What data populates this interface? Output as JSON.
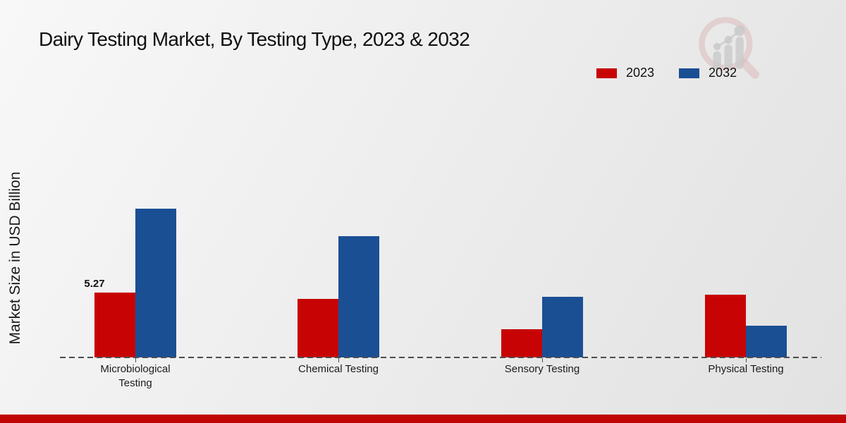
{
  "title": "Dairy Testing Market, By Testing Type, 2023 & 2032",
  "ylabel": "Market Size in USD Billion",
  "colors": {
    "series_2023": "#c80303",
    "series_2032": "#1a4f94",
    "footer_bar": "#c10505",
    "axis": "#4d4d4d",
    "text": "#111111"
  },
  "legend": {
    "position": "top-right",
    "items": [
      {
        "label": "2023",
        "color": "#c80303"
      },
      {
        "label": "2032",
        "color": "#1a4f94"
      }
    ]
  },
  "watermark_icon": "magnifier-bar-chart-logo",
  "chart_data": {
    "type": "bar",
    "title": "Dairy Testing Market, By Testing Type, 2023 & 2032",
    "xlabel": "",
    "ylabel": "Market Size in USD Billion",
    "categories": [
      "Microbiological Testing",
      "Chemical Testing",
      "Sensory Testing",
      "Physical Testing"
    ],
    "series": [
      {
        "name": "2023",
        "color": "#c80303",
        "values": [
          5.27,
          4.75,
          2.3,
          5.1
        ]
      },
      {
        "name": "2032",
        "color": "#1a4f94",
        "values": [
          12.1,
          9.85,
          4.9,
          2.6
        ]
      }
    ],
    "value_labels": [
      {
        "series_index": 0,
        "category_index": 0,
        "text": "5.27"
      }
    ],
    "ylim": [
      0,
      13
    ],
    "grid": false,
    "y_axis_ticks_visible": false,
    "baseline_style": "dashed",
    "legend_position": "top-right"
  }
}
